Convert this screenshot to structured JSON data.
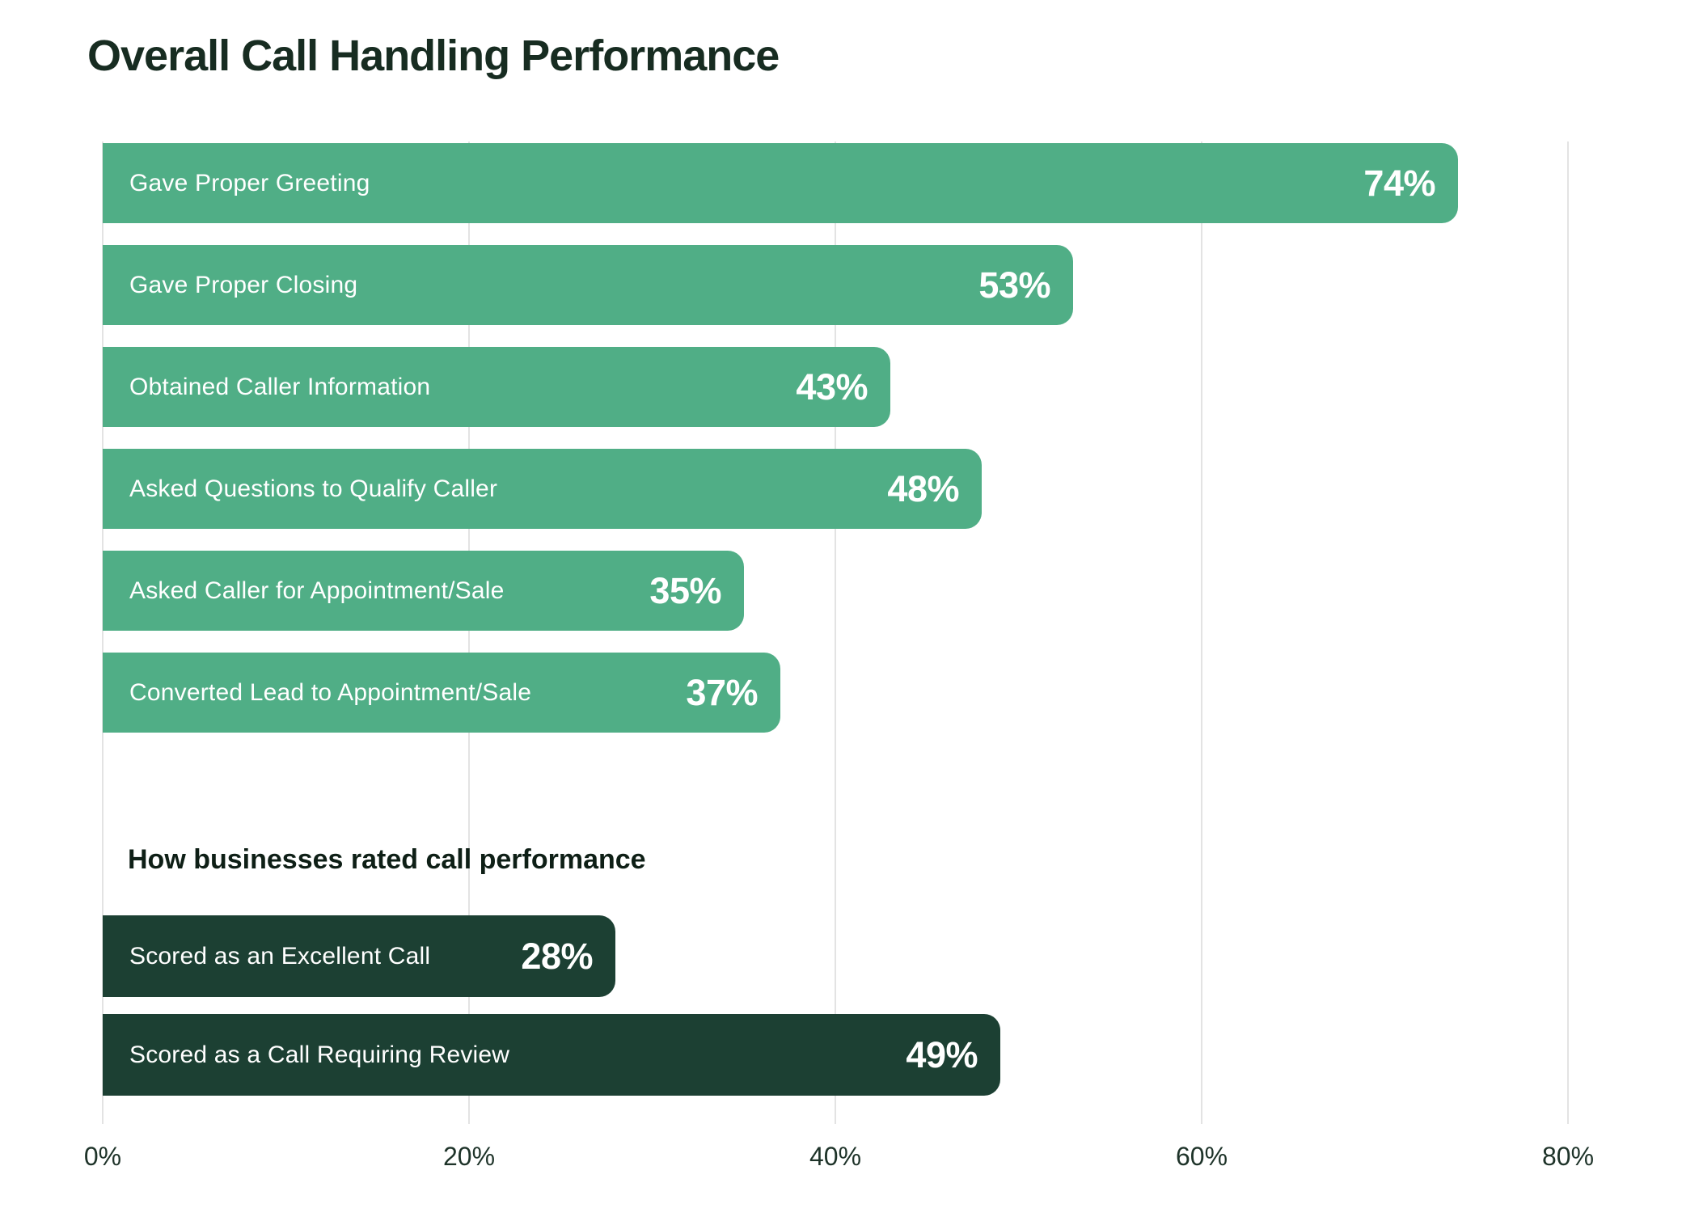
{
  "chart_data": {
    "type": "bar",
    "orientation": "horizontal",
    "title": "Overall Call Handling Performance",
    "xlabel": "",
    "ylabel": "",
    "xlim": [
      0,
      80
    ],
    "x_ticks": [
      "0%",
      "20%",
      "40%",
      "60%",
      "80%"
    ],
    "x_tick_values": [
      0,
      20,
      40,
      60,
      80
    ],
    "grid": true,
    "legend": "none",
    "value_suffix": "%",
    "sections": [
      {
        "name": "overall-call-handling",
        "heading": "",
        "bar_color": "#50ae86",
        "text_color": "#ffffff",
        "bars": [
          {
            "label": "Gave Proper Greeting",
            "value": 74
          },
          {
            "label": "Gave Proper Closing",
            "value": 53
          },
          {
            "label": "Obtained Caller Information",
            "value": 43
          },
          {
            "label": "Asked Questions to Qualify Caller",
            "value": 48
          },
          {
            "label": "Asked Caller for Appointment/Sale",
            "value": 35
          },
          {
            "label": "Converted Lead to Appointment/Sale",
            "value": 37
          }
        ]
      },
      {
        "name": "business-rated-call-performance",
        "heading": "How businesses rated call performance",
        "bar_color": "#1c4033",
        "text_color": "#ffffff",
        "bars": [
          {
            "label": "Scored as an Excellent Call",
            "value": 28
          },
          {
            "label": "Scored as a Call Requiring Review",
            "value": 49
          }
        ]
      }
    ]
  },
  "colors": {
    "background": "#ffffff",
    "gridline": "#e3e3e3",
    "title_text": "#172c21",
    "subtitle_text": "#0e1f16",
    "tick_text": "#1e3329",
    "bar_green": "#50ae86",
    "bar_dark_green": "#1c4033"
  }
}
